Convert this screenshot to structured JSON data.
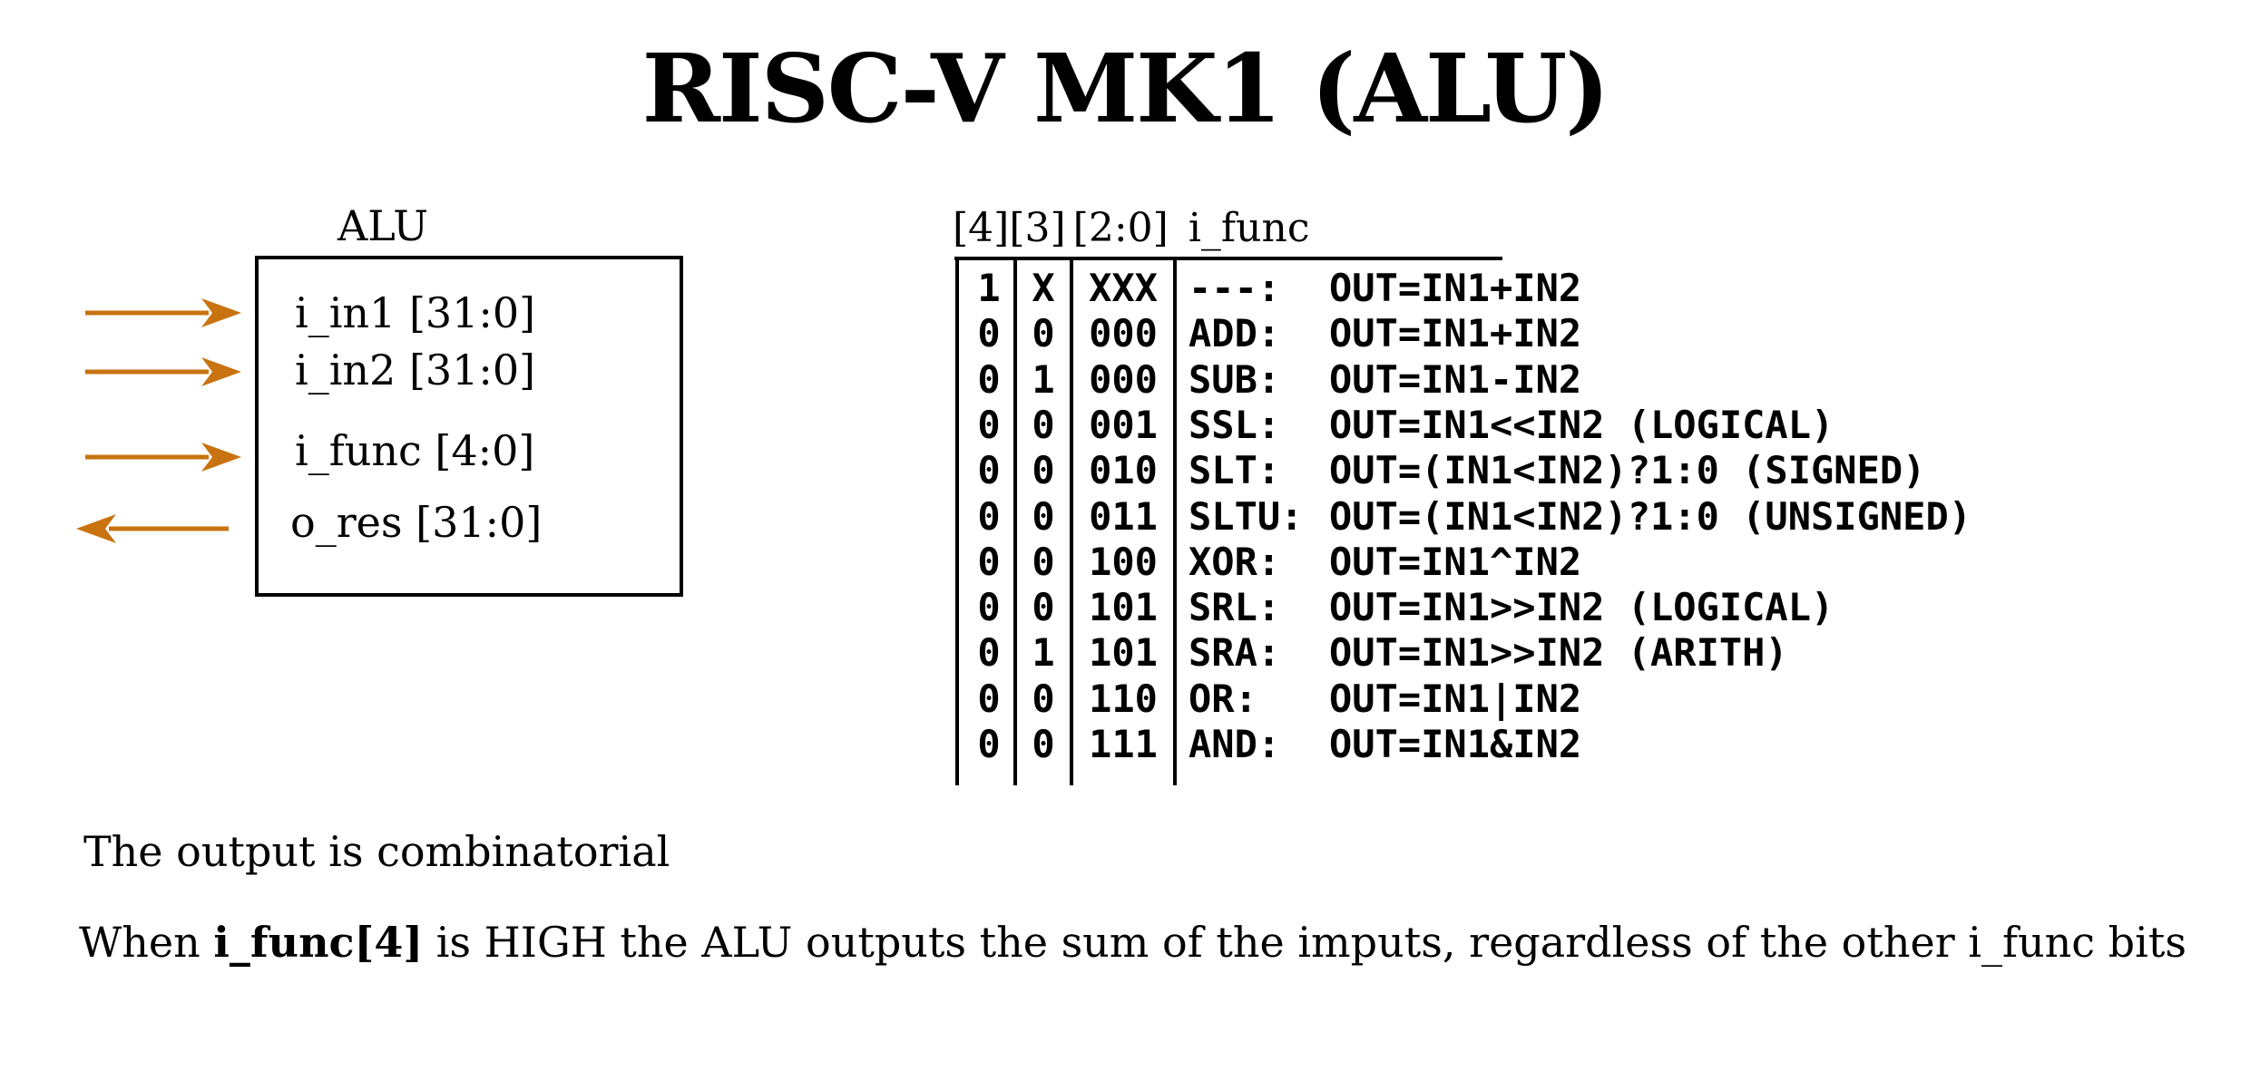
{
  "title": "RISC-V MK1 (ALU)",
  "block": {
    "label": "ALU",
    "ports": [
      {
        "name": "i_in1 [31:0]",
        "direction": "in"
      },
      {
        "name": "i_in2 [31:0]",
        "direction": "in"
      },
      {
        "name": "i_func [4:0]",
        "direction": "in"
      },
      {
        "name": "o_res [31:0]",
        "direction": "out"
      }
    ],
    "arrow_color": "#c8730f"
  },
  "table": {
    "headers": [
      "[4]",
      "[3]",
      "[2:0]",
      "i_func"
    ],
    "rows": [
      {
        "b4": "1",
        "b3": "X",
        "b20": "XXX",
        "mnemonic": "---:",
        "expr": "OUT=IN1+IN2"
      },
      {
        "b4": "0",
        "b3": "0",
        "b20": "000",
        "mnemonic": "ADD:",
        "expr": "OUT=IN1+IN2"
      },
      {
        "b4": "0",
        "b3": "1",
        "b20": "000",
        "mnemonic": "SUB:",
        "expr": "OUT=IN1-IN2"
      },
      {
        "b4": "0",
        "b3": "0",
        "b20": "001",
        "mnemonic": "SSL:",
        "expr": "OUT=IN1<<IN2 (LOGICAL)"
      },
      {
        "b4": "0",
        "b3": "0",
        "b20": "010",
        "mnemonic": "SLT:",
        "expr": "OUT=(IN1<IN2)?1:0 (SIGNED)"
      },
      {
        "b4": "0",
        "b3": "0",
        "b20": "011",
        "mnemonic": "SLTU:",
        "expr": "OUT=(IN1<IN2)?1:0 (UNSIGNED)"
      },
      {
        "b4": "0",
        "b3": "0",
        "b20": "100",
        "mnemonic": "XOR:",
        "expr": "OUT=IN1^IN2"
      },
      {
        "b4": "0",
        "b3": "0",
        "b20": "101",
        "mnemonic": "SRL:",
        "expr": "OUT=IN1>>IN2 (LOGICAL)"
      },
      {
        "b4": "0",
        "b3": "1",
        "b20": "101",
        "mnemonic": "SRA:",
        "expr": "OUT=IN1>>IN2 (ARITH)"
      },
      {
        "b4": "0",
        "b3": "0",
        "b20": "110",
        "mnemonic": "OR:",
        "expr": "OUT=IN1|IN2"
      },
      {
        "b4": "0",
        "b3": "0",
        "b20": "111",
        "mnemonic": "AND:",
        "expr": "OUT=IN1&IN2"
      }
    ]
  },
  "notes": {
    "line1": "The output is combinatorial",
    "line2_prefix": "When ",
    "line2_bold": "i_func[4]",
    "line2_suffix": " is HIGH the ALU outputs the sum of the imputs, regardless of the other i_func bits"
  }
}
